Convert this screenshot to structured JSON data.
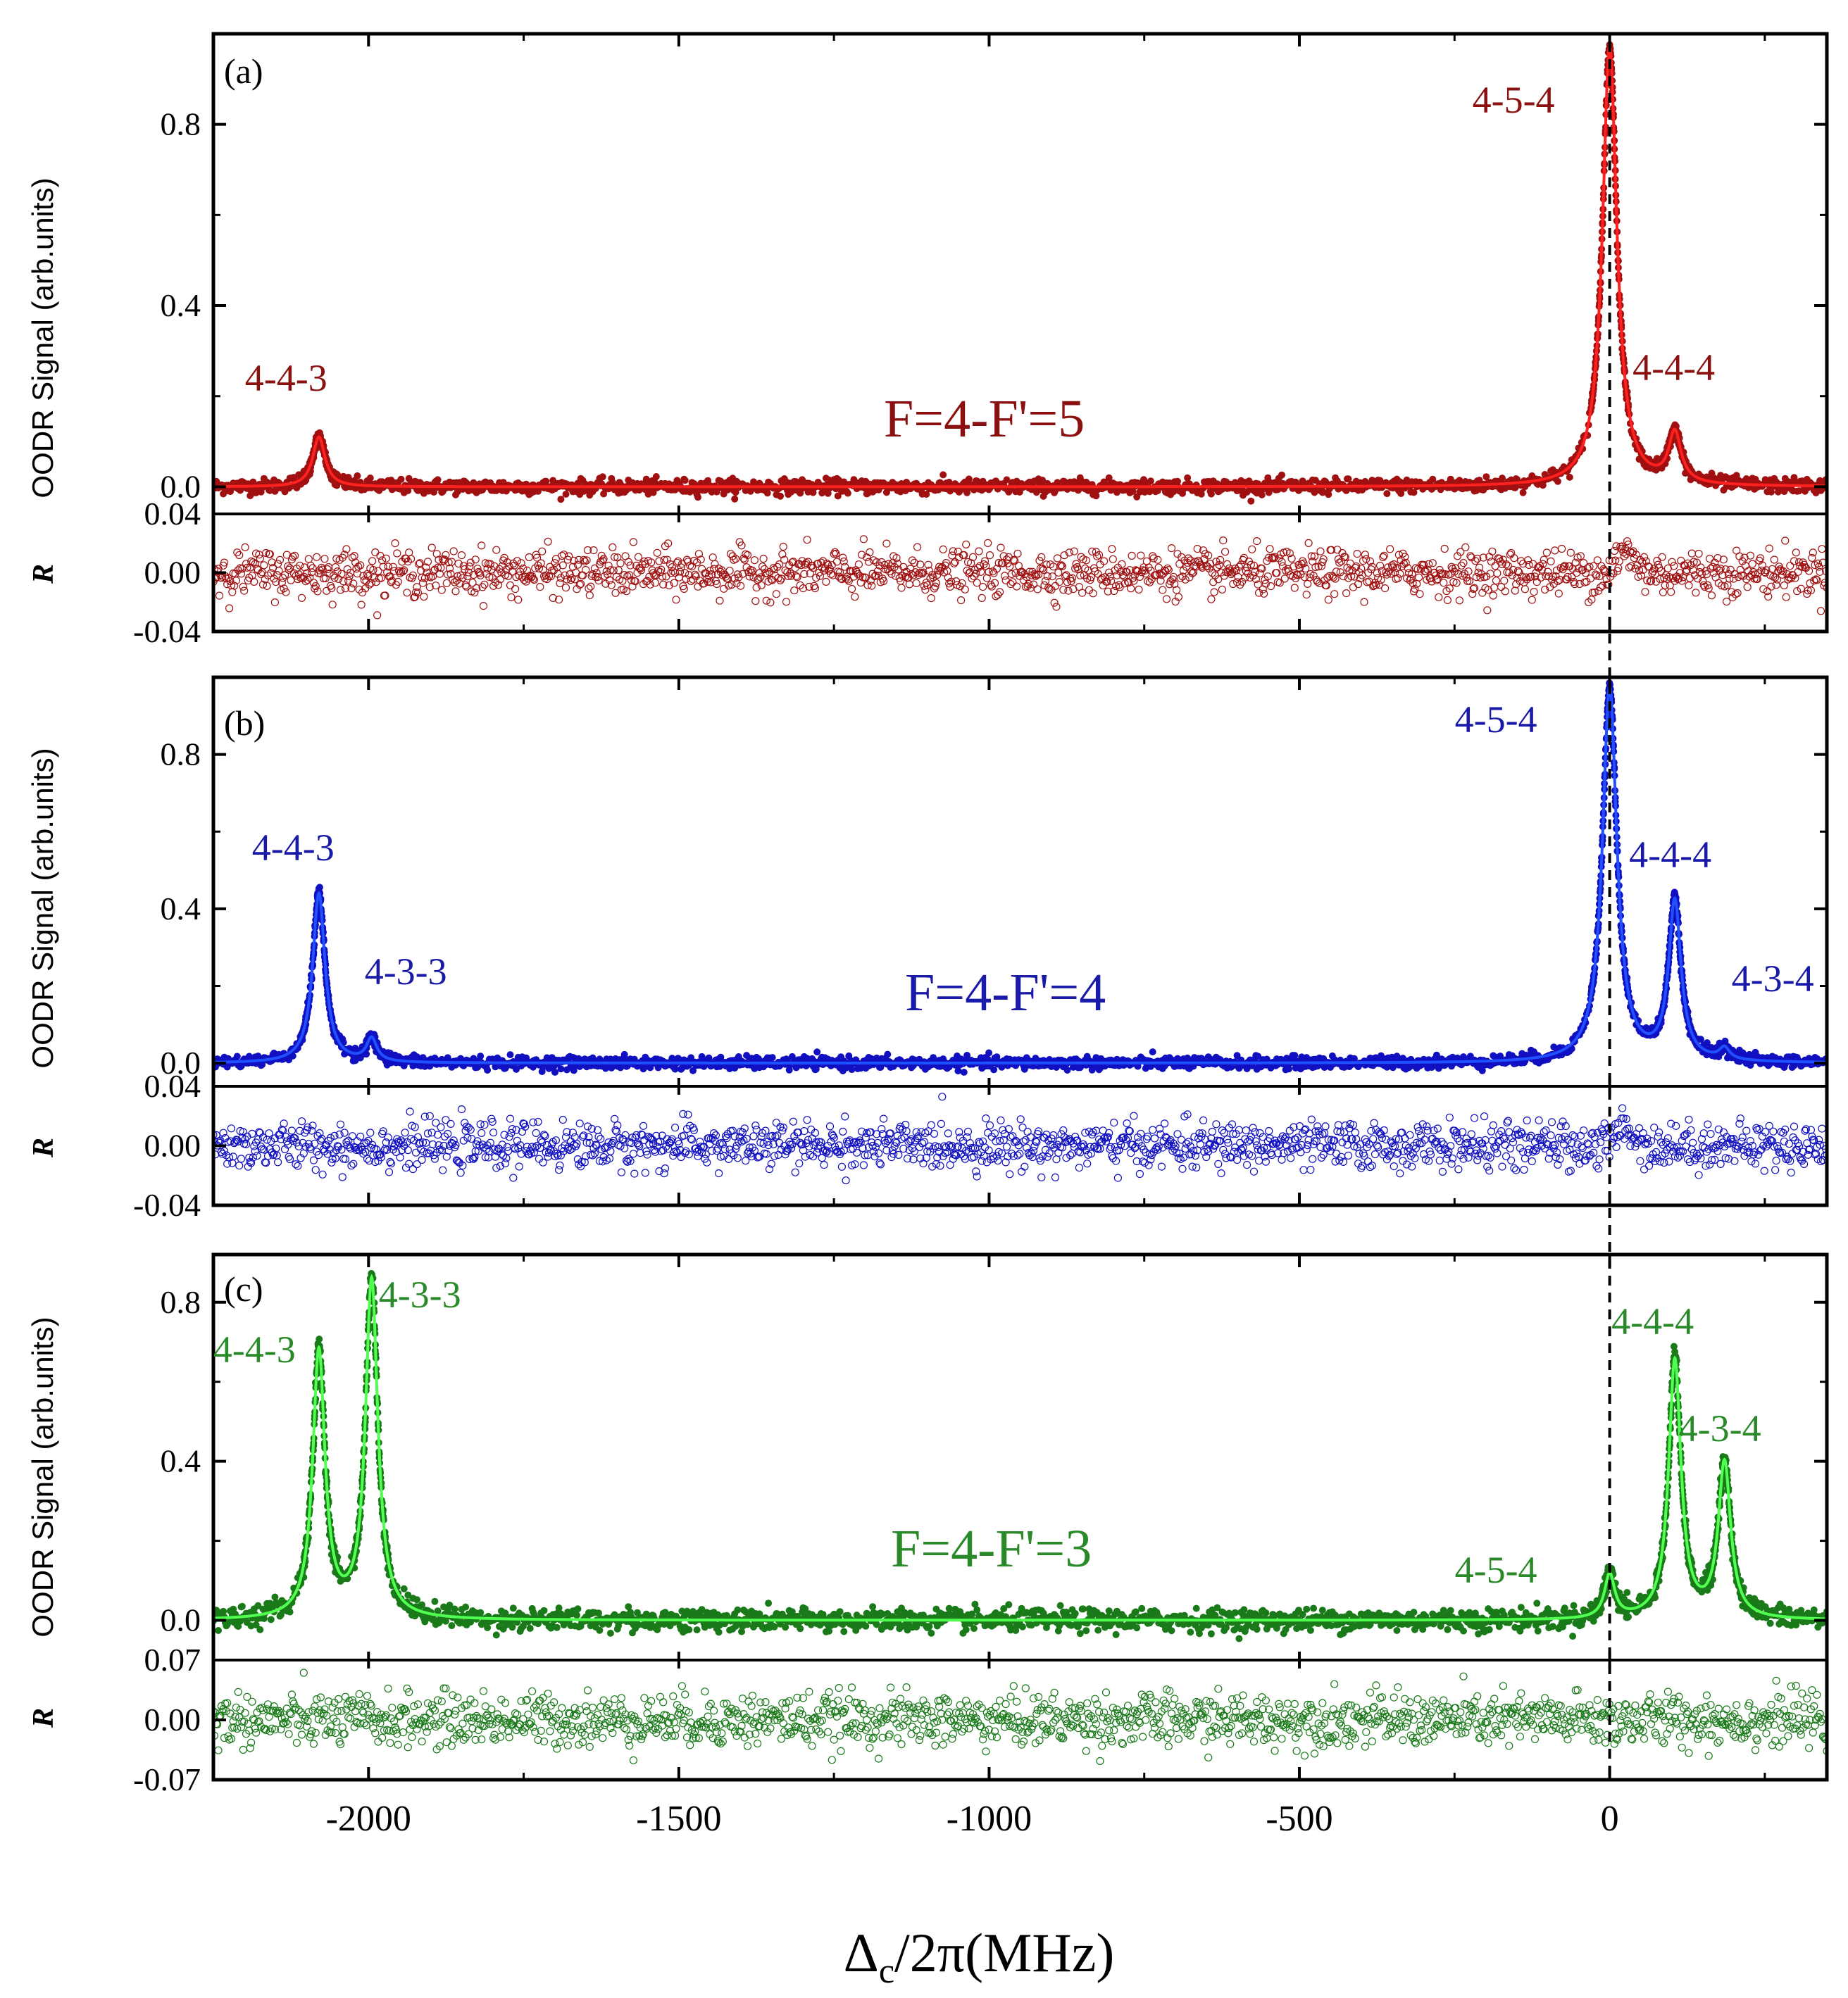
{
  "chart_data": {
    "type": "scatter",
    "x_label_main": "Δ",
    "x_label_sub": "c",
    "x_label_rest": "/2π(MHz)",
    "xlim": [
      -2250,
      350
    ],
    "x_ticks": [
      -2000,
      -1500,
      -1000,
      -500,
      0
    ],
    "x_tick_labels": [
      "-2000",
      "-1500",
      "-1000",
      "-500",
      "0"
    ],
    "y_label": "OODR Signal (arb.units)",
    "residual_label": "R",
    "reference_line_x": 0,
    "panels": [
      {
        "id": "a",
        "panel_label": "(a)",
        "title": "F=4-F'=5",
        "data_color": "#a01010",
        "fit_color": "#ff2020",
        "text_color": "#8b1010",
        "ylim": [
          -0.06,
          1.0
        ],
        "y_ticks": [
          0.0,
          0.4,
          0.8
        ],
        "y_tick_labels": [
          "0.0",
          "0.4",
          "0.8"
        ],
        "residual_ylim": [
          -0.04,
          0.04
        ],
        "residual_ticks": [
          -0.04,
          0.0,
          0.04
        ],
        "residual_tick_labels": [
          "-0.04",
          "0.00",
          "0.04"
        ],
        "residual_noise": 0.011,
        "peaks": [
          {
            "label": "4-4-3",
            "x": -2080,
            "height": 0.11,
            "width": 12
          },
          {
            "label": "4-5-4",
            "x": 0,
            "height": 0.97,
            "width": 14
          },
          {
            "label": "4-4-4",
            "x": 105,
            "height": 0.11,
            "width": 12
          }
        ]
      },
      {
        "id": "b",
        "panel_label": "(b)",
        "title": "F=4-F'=4",
        "data_color": "#1010c0",
        "fit_color": "#2050ff",
        "text_color": "#1a1aa8",
        "ylim": [
          -0.06,
          1.0
        ],
        "y_ticks": [
          0.0,
          0.4,
          0.8
        ],
        "y_tick_labels": [
          "0.0",
          "0.4",
          "0.8"
        ],
        "residual_ylim": [
          -0.04,
          0.04
        ],
        "residual_ticks": [
          -0.04,
          0.0,
          0.04
        ],
        "residual_tick_labels": [
          "-0.04",
          "0.00",
          "0.04"
        ],
        "residual_noise": 0.011,
        "peaks": [
          {
            "label": "4-4-3",
            "x": -2080,
            "height": 0.44,
            "width": 12
          },
          {
            "label": "4-3-3",
            "x": -1995,
            "height": 0.06,
            "width": 10
          },
          {
            "label": "4-5-4",
            "x": 0,
            "height": 0.97,
            "width": 14
          },
          {
            "label": "4-4-4",
            "x": 105,
            "height": 0.41,
            "width": 12
          },
          {
            "label": "4-3-4",
            "x": 185,
            "height": 0.03,
            "width": 10
          }
        ]
      },
      {
        "id": "c",
        "panel_label": "(c)",
        "title": "F=4-F'=3",
        "data_color": "#1a7a1a",
        "fit_color": "#50ff50",
        "text_color": "#2a8a2a",
        "ylim": [
          -0.1,
          0.92
        ],
        "y_ticks": [
          0.0,
          0.4,
          0.8
        ],
        "y_tick_labels": [
          "0.0",
          "0.4",
          "0.8"
        ],
        "residual_ylim": [
          -0.07,
          0.07
        ],
        "residual_ticks": [
          -0.07,
          0.0,
          0.07
        ],
        "residual_tick_labels": [
          "-0.07",
          "0.00",
          "0.07"
        ],
        "residual_noise": 0.022,
        "peaks": [
          {
            "label": "4-4-3",
            "x": -2080,
            "height": 0.67,
            "width": 12
          },
          {
            "label": "4-3-3",
            "x": -1995,
            "height": 0.85,
            "width": 12
          },
          {
            "label": "4-5-4",
            "x": 0,
            "height": 0.11,
            "width": 10
          },
          {
            "label": "4-4-4",
            "x": 105,
            "height": 0.65,
            "width": 12
          },
          {
            "label": "4-3-4",
            "x": 185,
            "height": 0.39,
            "width": 12
          }
        ]
      }
    ]
  }
}
